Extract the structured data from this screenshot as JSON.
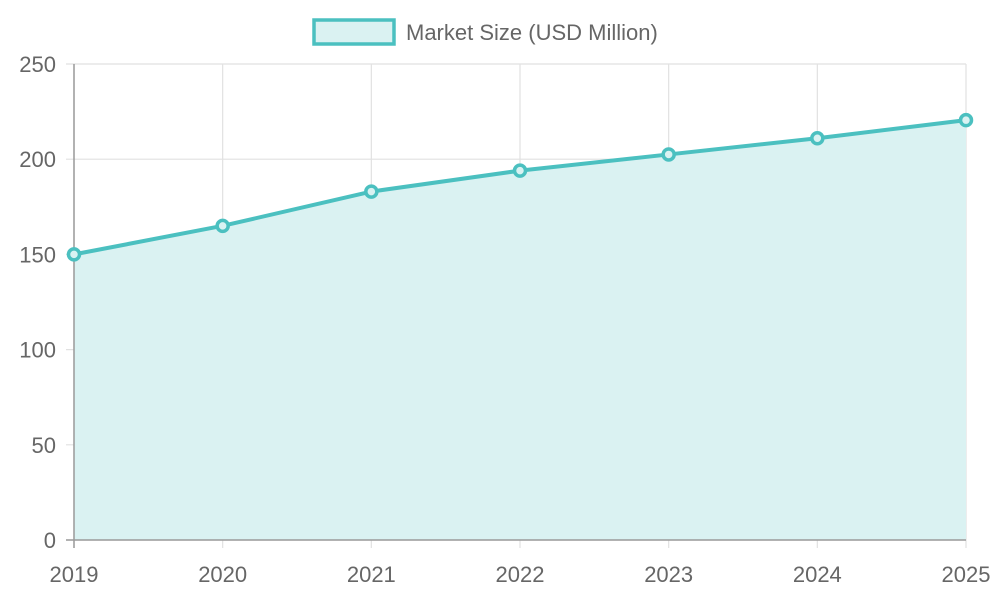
{
  "chart_data": {
    "type": "area",
    "title": "",
    "xlabel": "",
    "ylabel": "",
    "x": [
      "2019",
      "2020",
      "2021",
      "2022",
      "2023",
      "2024",
      "2025"
    ],
    "series": [
      {
        "name": "Market Size (USD Million)",
        "values": [
          150,
          165,
          183,
          194,
          202.5,
          211,
          220.5
        ]
      }
    ],
    "ylim": [
      0,
      250
    ],
    "yticks": [
      "0",
      "50",
      "100",
      "150",
      "200",
      "250"
    ],
    "grid": true,
    "legend_position": "top-center",
    "colors": {
      "line": "#4bc0c0",
      "fill": "#daf2f2",
      "grid": "#e1e1e1",
      "axis": "#9a9a9a",
      "text": "#666666"
    }
  }
}
